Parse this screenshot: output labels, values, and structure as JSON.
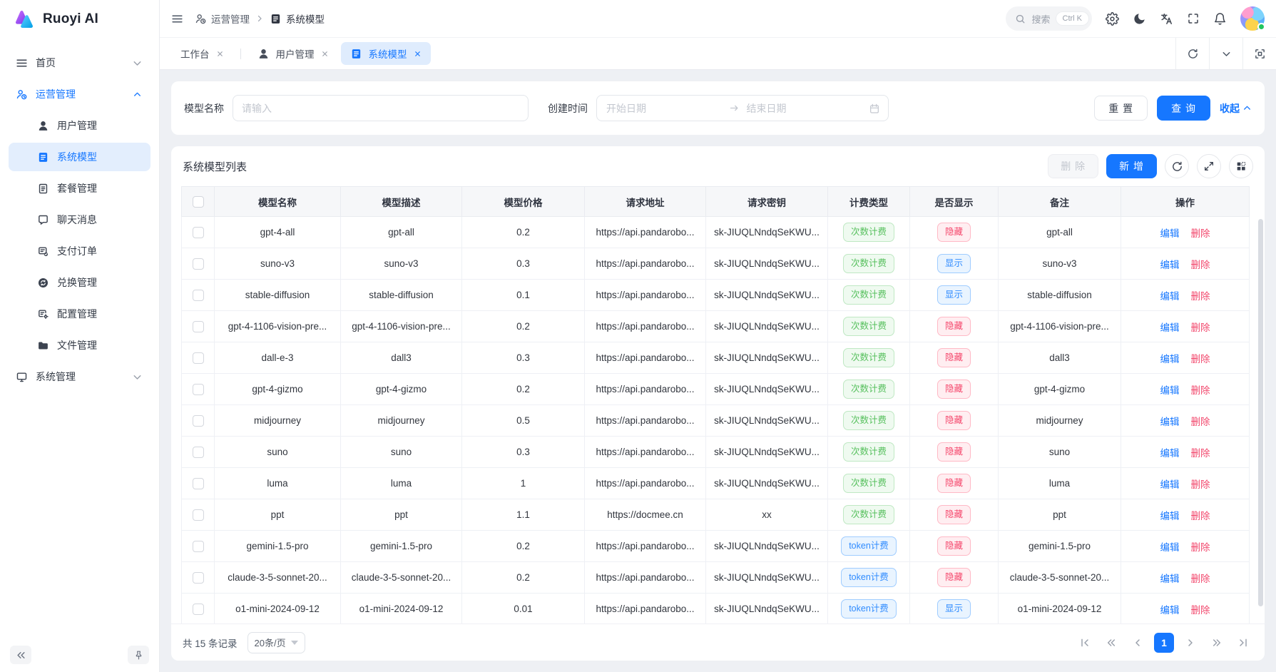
{
  "app": {
    "name": "Ruoyi AI"
  },
  "sidebar": {
    "menu": [
      {
        "label": "首页",
        "icon": "menu",
        "level": 1,
        "chevron": "down"
      },
      {
        "label": "运营管理",
        "icon": "user-clock",
        "level": 1,
        "chevron": "up",
        "highlight": true
      },
      {
        "label": "用户管理",
        "icon": "user-fill",
        "level": 2
      },
      {
        "label": "系统模型",
        "icon": "doc-fill",
        "level": 2,
        "active": true
      },
      {
        "label": "套餐管理",
        "icon": "doc-lines",
        "level": 2
      },
      {
        "label": "聊天消息",
        "icon": "chat",
        "level": 2
      },
      {
        "label": "支付订单",
        "icon": "receipt-check",
        "level": 2
      },
      {
        "label": "兑换管理",
        "icon": "exchange",
        "level": 2
      },
      {
        "label": "配置管理",
        "icon": "board-gear",
        "level": 2
      },
      {
        "label": "文件管理",
        "icon": "folder-fill",
        "level": 2
      },
      {
        "label": "系统管理",
        "icon": "monitor",
        "level": 1,
        "chevron": "down"
      }
    ]
  },
  "topbar": {
    "breadcrumb": [
      {
        "label": "运营管理",
        "icon": "user-clock"
      },
      {
        "label": "系统模型",
        "icon": "doc-fill"
      }
    ],
    "search": {
      "placeholder": "搜索",
      "shortcut": "Ctrl K"
    }
  },
  "tabs": [
    {
      "label": "工作台"
    },
    {
      "label": "用户管理",
      "icon": "user-fill"
    },
    {
      "label": "系统模型",
      "icon": "doc-fill",
      "active": true
    }
  ],
  "filter": {
    "model_name_label": "模型名称",
    "model_name_placeholder": "请输入",
    "create_time_label": "创建时间",
    "date_start_placeholder": "开始日期",
    "date_end_placeholder": "结束日期",
    "reset_label": "重 置",
    "search_label": "查 询",
    "collapse_label": "收起"
  },
  "list": {
    "title": "系统模型列表",
    "delete_label": "删 除",
    "add_label": "新 增"
  },
  "table": {
    "columns": [
      "模型名称",
      "模型描述",
      "模型价格",
      "请求地址",
      "请求密钥",
      "计费类型",
      "是否显示",
      "备注",
      "操作"
    ],
    "edit_label": "编辑",
    "delete_label": "删除",
    "rows": [
      {
        "name": "gpt-4-all",
        "desc": "gpt-all",
        "price": "0.2",
        "url": "https://api.pandarobo...",
        "key": "sk-JIUQLNndqSeKWU...",
        "billing": "次数计费",
        "billing_type": "count",
        "display": "隐藏",
        "display_type": "hidden",
        "remark": "gpt-all"
      },
      {
        "name": "suno-v3",
        "desc": "suno-v3",
        "price": "0.3",
        "url": "https://api.pandarobo...",
        "key": "sk-JIUQLNndqSeKWU...",
        "billing": "次数计费",
        "billing_type": "count",
        "display": "显示",
        "display_type": "shown",
        "remark": "suno-v3"
      },
      {
        "name": "stable-diffusion",
        "desc": "stable-diffusion",
        "price": "0.1",
        "url": "https://api.pandarobo...",
        "key": "sk-JIUQLNndqSeKWU...",
        "billing": "次数计费",
        "billing_type": "count",
        "display": "显示",
        "display_type": "shown",
        "remark": "stable-diffusion"
      },
      {
        "name": "gpt-4-1106-vision-pre...",
        "desc": "gpt-4-1106-vision-pre...",
        "price": "0.2",
        "url": "https://api.pandarobo...",
        "key": "sk-JIUQLNndqSeKWU...",
        "billing": "次数计费",
        "billing_type": "count",
        "display": "隐藏",
        "display_type": "hidden",
        "remark": "gpt-4-1106-vision-pre..."
      },
      {
        "name": "dall-e-3",
        "desc": "dall3",
        "price": "0.3",
        "url": "https://api.pandarobo...",
        "key": "sk-JIUQLNndqSeKWU...",
        "billing": "次数计费",
        "billing_type": "count",
        "display": "隐藏",
        "display_type": "hidden",
        "remark": "dall3"
      },
      {
        "name": "gpt-4-gizmo",
        "desc": "gpt-4-gizmo",
        "price": "0.2",
        "url": "https://api.pandarobo...",
        "key": "sk-JIUQLNndqSeKWU...",
        "billing": "次数计费",
        "billing_type": "count",
        "display": "隐藏",
        "display_type": "hidden",
        "remark": "gpt-4-gizmo"
      },
      {
        "name": "midjourney",
        "desc": "midjourney",
        "price": "0.5",
        "url": "https://api.pandarobo...",
        "key": "sk-JIUQLNndqSeKWU...",
        "billing": "次数计费",
        "billing_type": "count",
        "display": "隐藏",
        "display_type": "hidden",
        "remark": "midjourney"
      },
      {
        "name": "suno",
        "desc": "suno",
        "price": "0.3",
        "url": "https://api.pandarobo...",
        "key": "sk-JIUQLNndqSeKWU...",
        "billing": "次数计费",
        "billing_type": "count",
        "display": "隐藏",
        "display_type": "hidden",
        "remark": "suno"
      },
      {
        "name": "luma",
        "desc": "luma",
        "price": "1",
        "url": "https://api.pandarobo...",
        "key": "sk-JIUQLNndqSeKWU...",
        "billing": "次数计费",
        "billing_type": "count",
        "display": "隐藏",
        "display_type": "hidden",
        "remark": "luma"
      },
      {
        "name": "ppt",
        "desc": "ppt",
        "price": "1.1",
        "url": "https://docmee.cn",
        "key": "xx",
        "billing": "次数计费",
        "billing_type": "count",
        "display": "隐藏",
        "display_type": "hidden",
        "remark": "ppt"
      },
      {
        "name": "gemini-1.5-pro",
        "desc": "gemini-1.5-pro",
        "price": "0.2",
        "url": "https://api.pandarobo...",
        "key": "sk-JIUQLNndqSeKWU...",
        "billing": "token计费",
        "billing_type": "token",
        "display": "隐藏",
        "display_type": "hidden",
        "remark": "gemini-1.5-pro"
      },
      {
        "name": "claude-3-5-sonnet-20...",
        "desc": "claude-3-5-sonnet-20...",
        "price": "0.2",
        "url": "https://api.pandarobo...",
        "key": "sk-JIUQLNndqSeKWU...",
        "billing": "token计费",
        "billing_type": "token",
        "display": "隐藏",
        "display_type": "hidden",
        "remark": "claude-3-5-sonnet-20..."
      },
      {
        "name": "o1-mini-2024-09-12",
        "desc": "o1-mini-2024-09-12",
        "price": "0.01",
        "url": "https://api.pandarobo...",
        "key": "sk-JIUQLNndqSeKWU...",
        "billing": "token计费",
        "billing_type": "token",
        "display": "显示",
        "display_type": "shown",
        "remark": "o1-mini-2024-09-12"
      }
    ]
  },
  "footer": {
    "total_text": "共 15 条记录",
    "page_size": "20条/页",
    "current_page": "1"
  },
  "colors": {
    "primary": "#1677ff",
    "tag_green": "#56c05d",
    "tag_blue": "#2f8bff",
    "tag_red": "#f5486d"
  }
}
